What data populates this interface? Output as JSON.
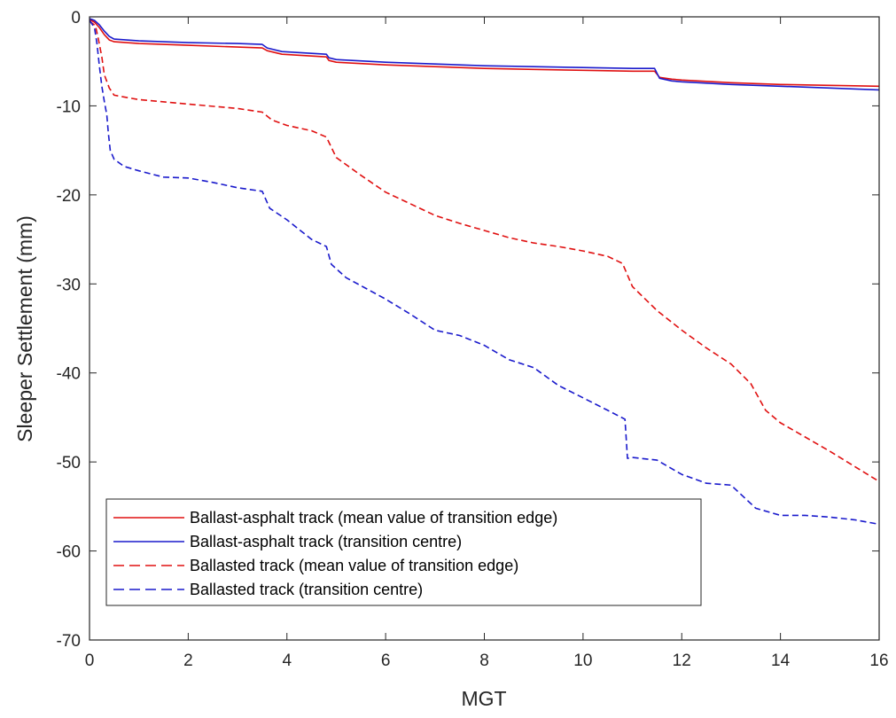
{
  "chart_data": {
    "type": "line",
    "xlabel": "MGT",
    "ylabel": "Sleeper Settlement (mm)",
    "xlim": [
      0,
      16
    ],
    "ylim": [
      -70,
      0
    ],
    "xticks": [
      0,
      2,
      4,
      6,
      8,
      10,
      12,
      14,
      16
    ],
    "yticks": [
      0,
      -10,
      -20,
      -30,
      -40,
      -50,
      -60,
      -70
    ],
    "grid": false,
    "legend_position": "bottom-left",
    "series": [
      {
        "name": "Ballast-asphalt track (mean value of transition edge)",
        "color": "#e01010",
        "style": "solid",
        "points": [
          [
            0,
            -0.3
          ],
          [
            0.1,
            -0.6
          ],
          [
            0.2,
            -1.2
          ],
          [
            0.3,
            -2.0
          ],
          [
            0.4,
            -2.6
          ],
          [
            0.5,
            -2.8
          ],
          [
            1,
            -3.0
          ],
          [
            2,
            -3.2
          ],
          [
            3,
            -3.4
          ],
          [
            3.5,
            -3.5
          ],
          [
            3.6,
            -3.8
          ],
          [
            3.9,
            -4.2
          ],
          [
            4.8,
            -4.5
          ],
          [
            4.85,
            -4.9
          ],
          [
            5.0,
            -5.1
          ],
          [
            6,
            -5.4
          ],
          [
            7,
            -5.6
          ],
          [
            8,
            -5.8
          ],
          [
            9,
            -5.9
          ],
          [
            10,
            -6.0
          ],
          [
            11,
            -6.1
          ],
          [
            11.45,
            -6.1
          ],
          [
            11.55,
            -6.8
          ],
          [
            11.8,
            -7.0
          ],
          [
            12,
            -7.1
          ],
          [
            13,
            -7.4
          ],
          [
            14,
            -7.6
          ],
          [
            15,
            -7.7
          ],
          [
            16,
            -7.8
          ]
        ]
      },
      {
        "name": "Ballast-asphalt track (transition centre)",
        "color": "#1a1acc",
        "style": "solid",
        "points": [
          [
            0,
            -0.2
          ],
          [
            0.1,
            -0.4
          ],
          [
            0.2,
            -0.9
          ],
          [
            0.3,
            -1.6
          ],
          [
            0.4,
            -2.2
          ],
          [
            0.5,
            -2.5
          ],
          [
            1,
            -2.7
          ],
          [
            2,
            -2.9
          ],
          [
            3,
            -3.0
          ],
          [
            3.5,
            -3.1
          ],
          [
            3.6,
            -3.5
          ],
          [
            3.9,
            -3.9
          ],
          [
            4.8,
            -4.2
          ],
          [
            4.85,
            -4.6
          ],
          [
            5.0,
            -4.8
          ],
          [
            6,
            -5.1
          ],
          [
            7,
            -5.3
          ],
          [
            8,
            -5.5
          ],
          [
            9,
            -5.6
          ],
          [
            10,
            -5.7
          ],
          [
            11,
            -5.8
          ],
          [
            11.45,
            -5.8
          ],
          [
            11.55,
            -6.9
          ],
          [
            11.8,
            -7.2
          ],
          [
            12,
            -7.3
          ],
          [
            13,
            -7.6
          ],
          [
            14,
            -7.8
          ],
          [
            15,
            -8.0
          ],
          [
            16,
            -8.2
          ]
        ]
      },
      {
        "name": "Ballasted track (mean value of transition edge)",
        "color": "#e01010",
        "style": "dashed",
        "points": [
          [
            0,
            -0.5
          ],
          [
            0.12,
            -1.0
          ],
          [
            0.18,
            -2.5
          ],
          [
            0.25,
            -4.5
          ],
          [
            0.3,
            -6.5
          ],
          [
            0.4,
            -8.0
          ],
          [
            0.5,
            -8.8
          ],
          [
            1,
            -9.3
          ],
          [
            2,
            -9.8
          ],
          [
            3,
            -10.3
          ],
          [
            3.5,
            -10.7
          ],
          [
            3.7,
            -11.6
          ],
          [
            4,
            -12.2
          ],
          [
            4.5,
            -12.8
          ],
          [
            4.8,
            -13.5
          ],
          [
            5.0,
            -15.8
          ],
          [
            5.5,
            -17.8
          ],
          [
            6,
            -19.7
          ],
          [
            6.5,
            -21.0
          ],
          [
            7,
            -22.3
          ],
          [
            7.5,
            -23.2
          ],
          [
            8,
            -24.0
          ],
          [
            8.5,
            -24.8
          ],
          [
            9,
            -25.4
          ],
          [
            9.5,
            -25.8
          ],
          [
            10,
            -26.3
          ],
          [
            10.5,
            -26.9
          ],
          [
            10.8,
            -27.7
          ],
          [
            11,
            -30.3
          ],
          [
            11.5,
            -33.0
          ],
          [
            12,
            -35.2
          ],
          [
            12.5,
            -37.2
          ],
          [
            13,
            -39.0
          ],
          [
            13.4,
            -41.2
          ],
          [
            13.7,
            -44.2
          ],
          [
            14,
            -45.6
          ],
          [
            14.5,
            -47.2
          ],
          [
            15,
            -48.8
          ],
          [
            15.5,
            -50.5
          ],
          [
            16,
            -52.2
          ]
        ]
      },
      {
        "name": "Ballasted track (transition centre)",
        "color": "#1a1acc",
        "style": "dashed",
        "points": [
          [
            0,
            -0.4
          ],
          [
            0.1,
            -1.2
          ],
          [
            0.15,
            -3.0
          ],
          [
            0.2,
            -5.5
          ],
          [
            0.25,
            -7.8
          ],
          [
            0.3,
            -9.5
          ],
          [
            0.35,
            -11.0
          ],
          [
            0.38,
            -13.0
          ],
          [
            0.42,
            -15.0
          ],
          [
            0.5,
            -16.0
          ],
          [
            0.7,
            -16.8
          ],
          [
            1,
            -17.3
          ],
          [
            1.5,
            -18.0
          ],
          [
            2,
            -18.1
          ],
          [
            2.5,
            -18.6
          ],
          [
            3,
            -19.2
          ],
          [
            3.5,
            -19.6
          ],
          [
            3.65,
            -21.5
          ],
          [
            4,
            -22.8
          ],
          [
            4.5,
            -25.0
          ],
          [
            4.8,
            -25.8
          ],
          [
            4.9,
            -27.8
          ],
          [
            5.2,
            -29.3
          ],
          [
            5.5,
            -30.2
          ],
          [
            6,
            -31.7
          ],
          [
            6.5,
            -33.4
          ],
          [
            7,
            -35.2
          ],
          [
            7.5,
            -35.8
          ],
          [
            8,
            -36.9
          ],
          [
            8.5,
            -38.5
          ],
          [
            9,
            -39.4
          ],
          [
            9.5,
            -41.4
          ],
          [
            10,
            -42.8
          ],
          [
            10.5,
            -44.2
          ],
          [
            10.85,
            -45.2
          ],
          [
            10.9,
            -49.6
          ],
          [
            11,
            -49.5
          ],
          [
            11.5,
            -49.8
          ],
          [
            12,
            -51.4
          ],
          [
            12.5,
            -52.4
          ],
          [
            13,
            -52.6
          ],
          [
            13.5,
            -55.2
          ],
          [
            14,
            -56.0
          ],
          [
            14.5,
            -56.0
          ],
          [
            15,
            -56.2
          ],
          [
            15.5,
            -56.5
          ],
          [
            16,
            -57.0
          ]
        ]
      }
    ]
  }
}
